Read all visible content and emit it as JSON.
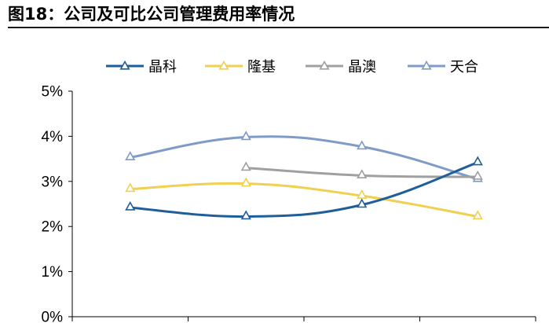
{
  "title": "图18：公司及可比公司管理费用率情况",
  "chart_data": {
    "type": "line",
    "title": "",
    "xlabel": "",
    "ylabel": "",
    "ylim": [
      0,
      5
    ],
    "y_ticks": [
      "0%",
      "1%",
      "2%",
      "3%",
      "4%",
      "5%"
    ],
    "x_count": 4,
    "grid": false,
    "legend_position": "top",
    "series": [
      {
        "name": "晶科",
        "color": "#1f5f99",
        "values": [
          2.42,
          2.22,
          2.48,
          3.42
        ]
      },
      {
        "name": "隆基",
        "color": "#f0d050",
        "values": [
          2.83,
          2.95,
          2.68,
          2.22
        ]
      },
      {
        "name": "晶澳",
        "color": "#a0a0a0",
        "values": [
          null,
          3.3,
          3.13,
          3.1
        ]
      },
      {
        "name": "天合",
        "color": "#7f9bc8",
        "values": [
          3.53,
          3.98,
          3.77,
          3.05
        ]
      }
    ]
  }
}
